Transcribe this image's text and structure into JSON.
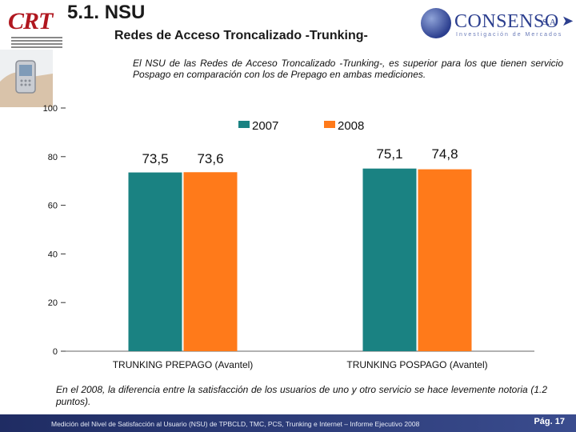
{
  "header": {
    "title": "5.1. NSU",
    "subtitle": "Redes de Acceso Troncalizado -Trunking-",
    "crt_logo": "CRT",
    "consenso_logo": "CONSENSO",
    "consenso_sa": "S.A",
    "consenso_tagline": "Investigación de Mercados"
  },
  "intro_text": "El NSU de las Redes de Acceso Troncalizado -Trunking-, es superior para los que tienen servicio Pospago en comparación con los de Prepago en ambas mediciones.",
  "chart_data": {
    "type": "bar",
    "categories": [
      "TRUNKING PREPAGO (Avantel)",
      "TRUNKING POSPAGO (Avantel)"
    ],
    "series": [
      {
        "name": "2007",
        "values": [
          73.5,
          75.1
        ],
        "labels": [
          "73,5",
          "75,1"
        ],
        "color": "#1a8282"
      },
      {
        "name": "2008",
        "values": [
          73.6,
          74.8
        ],
        "labels": [
          "73,6",
          "74,8"
        ],
        "color": "#ff7a1a"
      }
    ],
    "ylim": [
      0,
      100
    ],
    "yticks": [
      0,
      20,
      40,
      60,
      80,
      100
    ],
    "grid": false,
    "legend_position": "top-center"
  },
  "footer_note": "En el 2008, la diferencia entre la satisfacción de los usuarios de uno y otro servicio se hace levemente notoria (1.2 puntos).",
  "bottom_bar": {
    "text": "Medición del Nivel de Satisfacción al Usuario (NSU) de TPBCLD, TMC, PCS, Trunking e Internet – Informe Ejecutivo 2008",
    "page": "Pág. 17"
  }
}
